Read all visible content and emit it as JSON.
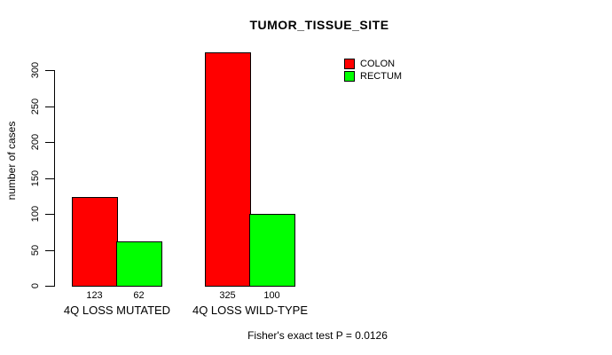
{
  "chart_data": {
    "type": "bar",
    "title": "TUMOR_TISSUE_SITE",
    "ylabel": "number of cases",
    "xlabel": "",
    "ylim": [
      0,
      300
    ],
    "yticks": [
      0,
      50,
      100,
      150,
      200,
      250,
      300
    ],
    "categories": [
      "4Q LOSS MUTATED",
      "4Q LOSS WILD-TYPE"
    ],
    "series": [
      {
        "name": "COLON",
        "color": "#ff0000",
        "values": [
          123,
          325
        ]
      },
      {
        "name": "RECTUM",
        "color": "#00ff00",
        "values": [
          62,
          100
        ]
      }
    ],
    "bar_value_labels": [
      [
        "123",
        "62"
      ],
      [
        "325",
        "100"
      ]
    ],
    "footer": "Fisher's exact test P = 0.0126",
    "legend_position": "top-right",
    "grid": false,
    "colors": {
      "bar_border": "#000000",
      "axis": "#000000",
      "text": "#000000",
      "background": "#ffffff"
    }
  }
}
